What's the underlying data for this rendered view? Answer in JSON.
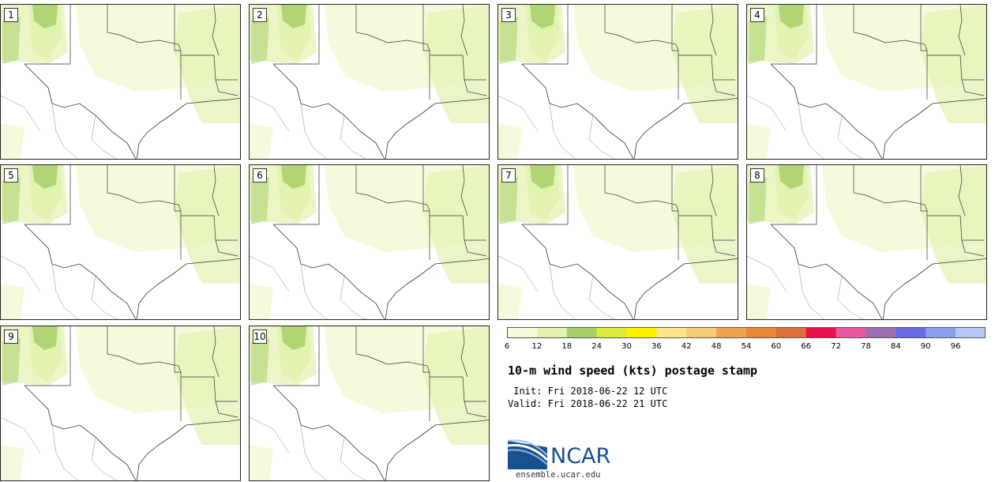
{
  "panels": [
    {
      "label": "1"
    },
    {
      "label": "2"
    },
    {
      "label": "3"
    },
    {
      "label": "4"
    },
    {
      "label": "5"
    },
    {
      "label": "6"
    },
    {
      "label": "7"
    },
    {
      "label": "8"
    },
    {
      "label": "9"
    },
    {
      "label": "10"
    }
  ],
  "colorbar": {
    "labels": [
      "6",
      "12",
      "18",
      "24",
      "30",
      "36",
      "42",
      "48",
      "54",
      "60",
      "66",
      "72",
      "78",
      "84",
      "90",
      "96"
    ],
    "colors": [
      "#f6fadc",
      "#e2f2b0",
      "#a8cf6a",
      "#dcec3a",
      "#fff200",
      "#ffe68a",
      "#f7cc78",
      "#eea34e",
      "#e8893a",
      "#e0703a",
      "#e8124a",
      "#e858a0",
      "#9e6eb0",
      "#6a6ae8",
      "#8aa0ee",
      "#b8c8f6"
    ]
  },
  "title": "10-m wind speed (kts) postage stamp",
  "init": " Init: Fri 2018-06-22 12 UTC",
  "valid": "Valid: Fri 2018-06-22 21 UTC",
  "logo": {
    "text": "NCAR",
    "url": "ensemble.ucar.edu"
  }
}
